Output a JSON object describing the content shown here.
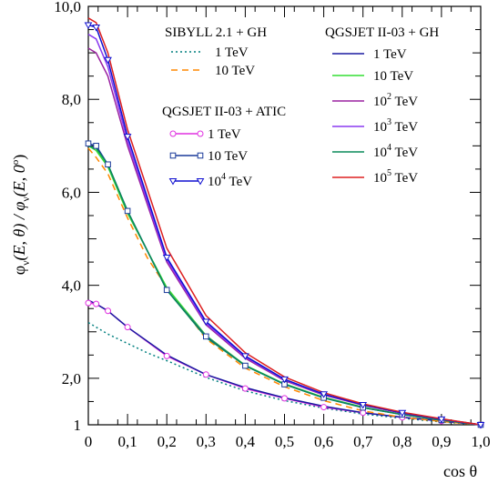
{
  "chart_data": {
    "type": "line",
    "xlabel": "cos θ",
    "ylabel_parts": {
      "phi": "φ",
      "nu": "ν",
      "mid": "(E, θ) / φ",
      "nu2": "ν",
      "tail": "(E, 0",
      "deg": "o",
      "close": ")"
    },
    "xlim": [
      0,
      1.0
    ],
    "ylim": [
      1,
      10
    ],
    "x_ticks": [
      0,
      0.1,
      0.2,
      0.3,
      0.4,
      0.5,
      0.6,
      0.7,
      0.8,
      0.9,
      1.0
    ],
    "x_tick_labels": [
      "0",
      "0,1",
      "0,2",
      "0,3",
      "0,4",
      "0,5",
      "0,6",
      "0,7",
      "0,8",
      "0,9",
      "1,0"
    ],
    "y_ticks": [
      1,
      2,
      4,
      6,
      8,
      10
    ],
    "y_tick_labels": [
      "1",
      "2,0",
      "4,0",
      "6,0",
      "8,0",
      "10,0"
    ],
    "legend_groups": [
      {
        "title": "SIBYLL 2.1 +  GH",
        "entries": [
          {
            "label": "1 TeV",
            "series": 0
          },
          {
            "label": "10 TeV",
            "series": 1
          }
        ]
      },
      {
        "title": "QGSJET II-03  + ATIC",
        "entries": [
          {
            "label": "1 TeV",
            "series": 2
          },
          {
            "label": "10 TeV",
            "series": 3
          },
          {
            "label": "10",
            "sup": "4",
            "suffix": " TeV",
            "series": 4
          }
        ]
      },
      {
        "title": "QGSJET II-03  +  GH",
        "entries": [
          {
            "label": "1 TeV",
            "series": 5
          },
          {
            "label": "10 TeV",
            "series": 6
          },
          {
            "label": "10",
            "sup": "2",
            "suffix": " TeV",
            "series": 7
          },
          {
            "label": "10",
            "sup": "3",
            "suffix": " TeV",
            "series": 8
          },
          {
            "label": "10",
            "sup": "4",
            "suffix": " TeV",
            "series": 9
          },
          {
            "label": "10",
            "sup": "5",
            "suffix": " TeV",
            "series": 10
          }
        ]
      }
    ],
    "series": [
      {
        "color": "#007f7f",
        "dash": "2,3",
        "marker": "none",
        "x": [
          0,
          0.05,
          0.1,
          0.15,
          0.2,
          0.3,
          0.4,
          0.5,
          0.6,
          0.7,
          0.8,
          0.9,
          1.0
        ],
        "y": [
          3.2,
          2.95,
          2.75,
          2.55,
          2.38,
          2.02,
          1.73,
          1.52,
          1.36,
          1.23,
          1.14,
          1.06,
          1.0
        ]
      },
      {
        "color": "#ff8800",
        "dash": "7,5",
        "marker": "none",
        "x": [
          0,
          0.02,
          0.05,
          0.1,
          0.15,
          0.2,
          0.3,
          0.4,
          0.5,
          0.6,
          0.7,
          0.8,
          0.9,
          1.0
        ],
        "y": [
          6.95,
          6.75,
          6.4,
          5.45,
          4.6,
          3.95,
          2.85,
          2.22,
          1.82,
          1.52,
          1.3,
          1.16,
          1.07,
          1.0
        ]
      },
      {
        "color": "#e030e0",
        "dash": "",
        "marker": "circle",
        "x": [
          0,
          0.02,
          0.05,
          0.1,
          0.2,
          0.3,
          0.4,
          0.5,
          0.6,
          0.7,
          0.8,
          0.9,
          1.0
        ],
        "y": [
          3.62,
          3.6,
          3.45,
          3.1,
          2.48,
          2.08,
          1.78,
          1.57,
          1.38,
          1.26,
          1.16,
          1.08,
          1.0
        ]
      },
      {
        "color": "#1a3a9a",
        "dash": "",
        "marker": "square",
        "x": [
          0,
          0.02,
          0.05,
          0.1,
          0.2,
          0.3,
          0.4,
          0.5,
          0.6,
          0.7,
          0.8,
          0.9,
          1.0
        ],
        "y": [
          7.05,
          7.0,
          6.6,
          5.6,
          3.9,
          2.9,
          2.27,
          1.87,
          1.58,
          1.37,
          1.22,
          1.1,
          1.0
        ]
      },
      {
        "color": "#1010d0",
        "dash": "",
        "marker": "triangle",
        "x": [
          0,
          0.02,
          0.05,
          0.1,
          0.2,
          0.3,
          0.4,
          0.5,
          0.6,
          0.7,
          0.8,
          0.9,
          1.0
        ],
        "y": [
          9.6,
          9.55,
          8.85,
          7.2,
          4.6,
          3.22,
          2.48,
          1.98,
          1.66,
          1.43,
          1.26,
          1.12,
          1.0
        ]
      },
      {
        "color": "#1a1aa0",
        "dash": "",
        "marker": "none",
        "x": [
          0,
          0.02,
          0.05,
          0.1,
          0.2,
          0.3,
          0.4,
          0.5,
          0.6,
          0.7,
          0.8,
          0.9,
          1.0
        ],
        "y": [
          3.68,
          3.6,
          3.45,
          3.1,
          2.5,
          2.08,
          1.8,
          1.58,
          1.4,
          1.26,
          1.16,
          1.08,
          1.0
        ]
      },
      {
        "color": "#33dd33",
        "dash": "",
        "marker": "none",
        "x": [
          0,
          0.02,
          0.05,
          0.1,
          0.2,
          0.3,
          0.4,
          0.5,
          0.6,
          0.7,
          0.8,
          0.9,
          1.0
        ],
        "y": [
          7.0,
          6.9,
          6.55,
          5.55,
          3.95,
          2.92,
          2.28,
          1.88,
          1.59,
          1.38,
          1.22,
          1.1,
          1.0
        ]
      },
      {
        "color": "#9a20a0",
        "dash": "",
        "marker": "none",
        "x": [
          0,
          0.02,
          0.05,
          0.1,
          0.2,
          0.3,
          0.4,
          0.5,
          0.6,
          0.7,
          0.8,
          0.9,
          1.0
        ],
        "y": [
          9.1,
          9.0,
          8.5,
          7.0,
          4.5,
          3.15,
          2.43,
          1.95,
          1.64,
          1.42,
          1.25,
          1.12,
          1.0
        ]
      },
      {
        "color": "#8a3af0",
        "dash": "",
        "marker": "none",
        "x": [
          0,
          0.02,
          0.05,
          0.1,
          0.2,
          0.3,
          0.4,
          0.5,
          0.6,
          0.7,
          0.8,
          0.9,
          1.0
        ],
        "y": [
          9.4,
          9.3,
          8.7,
          7.1,
          4.55,
          3.18,
          2.46,
          1.97,
          1.65,
          1.43,
          1.26,
          1.12,
          1.0
        ]
      },
      {
        "color": "#0a8a5a",
        "dash": "",
        "marker": "none",
        "x": [
          0,
          0.02,
          0.05,
          0.1,
          0.2,
          0.3,
          0.4,
          0.5,
          0.6,
          0.7,
          0.8,
          0.9,
          1.0
        ],
        "y": [
          7.0,
          6.95,
          6.6,
          5.6,
          3.9,
          2.88,
          2.27,
          1.87,
          1.58,
          1.37,
          1.22,
          1.1,
          1.0
        ]
      },
      {
        "color": "#dd2020",
        "dash": "",
        "marker": "none",
        "x": [
          0,
          0.02,
          0.05,
          0.1,
          0.2,
          0.3,
          0.4,
          0.5,
          0.6,
          0.7,
          0.8,
          0.9,
          1.0
        ],
        "y": [
          9.75,
          9.65,
          9.0,
          7.35,
          4.8,
          3.35,
          2.55,
          2.03,
          1.69,
          1.45,
          1.27,
          1.13,
          1.0
        ]
      }
    ]
  }
}
